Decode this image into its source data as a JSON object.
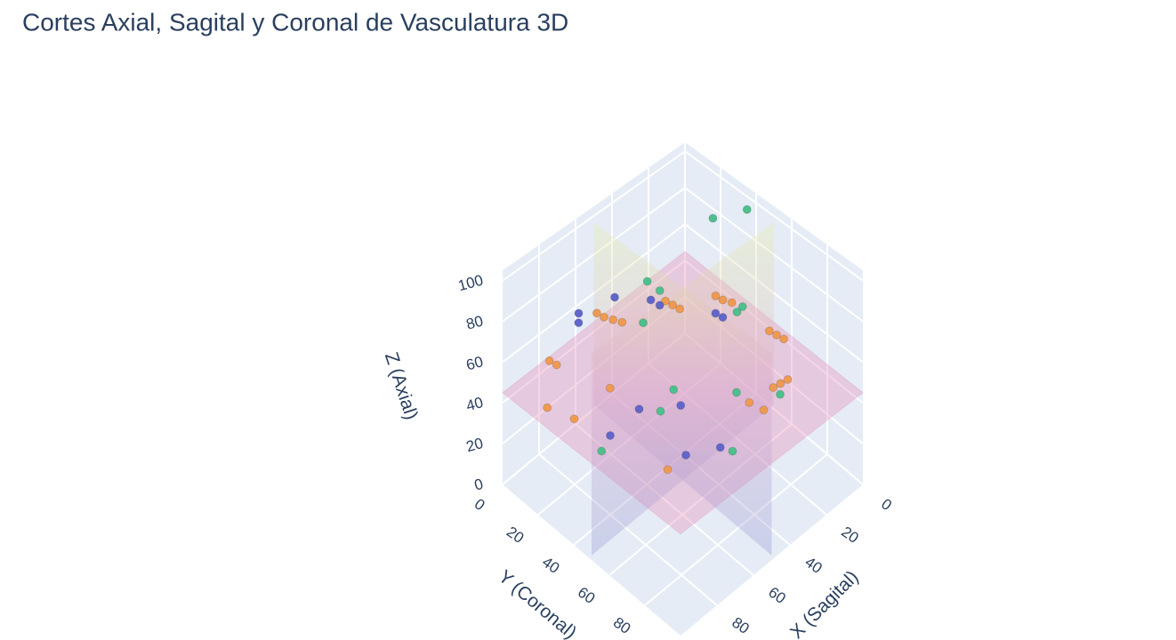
{
  "chart_data": {
    "type": "scatter3d",
    "title": "Cortes Axial, Sagital y Coronal de Vasculatura 3D",
    "xaxis_title": "X (Sagital)",
    "yaxis_title": "Y (Coronal)",
    "zaxis_title": "Z (Axial)",
    "xlim": [
      0,
      100
    ],
    "ylim": [
      0,
      100
    ],
    "zlim": [
      0,
      105
    ],
    "xticks": [
      0,
      20,
      40,
      60,
      80
    ],
    "yticks": [
      0,
      20,
      40,
      60,
      80
    ],
    "zticks": [
      0,
      20,
      40,
      60,
      80,
      100
    ],
    "grid": true,
    "planes": [
      {
        "axis": "z",
        "value": 45,
        "color": "#e377a8"
      },
      {
        "axis": "x",
        "value": 50,
        "color": "#c9d94a"
      },
      {
        "axis": "y",
        "value": 50,
        "color": "#c9d94a"
      }
    ],
    "series": [
      {
        "color": "#ef9a52",
        "x": [
          62,
          60,
          57,
          54,
          40,
          38,
          36,
          30,
          28,
          25,
          22,
          20,
          18,
          88,
          86,
          84,
          35,
          30,
          95,
          90,
          70,
          14,
          12,
          10
        ],
        "y": [
          14,
          16,
          18,
          20,
          30,
          32,
          34,
          48,
          50,
          52,
          70,
          72,
          74,
          14,
          16,
          44,
          72,
          75,
          20,
          30,
          62,
          64,
          66,
          68
        ],
        "z": [
          68,
          66,
          64,
          62,
          70,
          68,
          66,
          78,
          76,
          74,
          70,
          68,
          66,
          62,
          60,
          66,
          45,
          40,
          48,
          46,
          30,
          32,
          34,
          36
        ]
      },
      {
        "color": "#4fc08d",
        "x": [
          5,
          12,
          48,
          45,
          60,
          30,
          25,
          40,
          70,
          55,
          50,
          75,
          20
        ],
        "y": [
          40,
          28,
          28,
          32,
          38,
          60,
          58,
          70,
          58,
          50,
          78,
          30,
          74
        ],
        "z": [
          100,
          92,
          84,
          80,
          78,
          78,
          76,
          52,
          55,
          50,
          36,
          20,
          40
        ],
        "value_sizes": null
      },
      {
        "color": "#6366c9",
        "x": [
          70,
          72,
          60,
          48,
          46,
          32,
          30,
          70,
          55,
          60,
          45,
          80
        ],
        "y": [
          12,
          14,
          22,
          30,
          33,
          50,
          52,
          46,
          54,
          62,
          66,
          40
        ],
        "z": [
          72,
          70,
          80,
          76,
          74,
          72,
          70,
          48,
          45,
          30,
          26,
          38
        ]
      }
    ]
  }
}
